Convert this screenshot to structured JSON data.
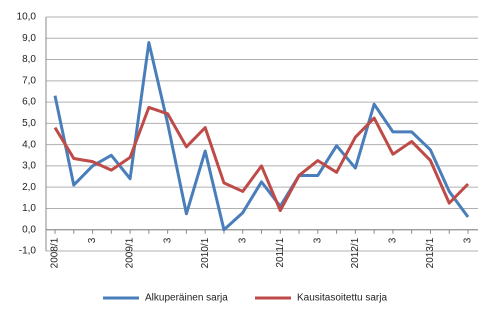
{
  "chart_data": {
    "type": "line",
    "categories": [
      "2008/1",
      null,
      "3",
      null,
      "2009/1",
      null,
      "3",
      null,
      "2010/1",
      null,
      "3",
      null,
      "2011/1",
      null,
      "3",
      null,
      "2012/1",
      null,
      "3",
      null,
      "2013/1",
      null,
      "3"
    ],
    "series": [
      {
        "name": "Alkuperäinen sarja",
        "color": "#4a7ebb",
        "values": [
          6.3,
          2.1,
          3.0,
          3.5,
          2.4,
          8.8,
          5.0,
          0.75,
          3.7,
          0.0,
          0.8,
          2.25,
          1.1,
          2.55,
          2.55,
          3.95,
          2.9,
          5.9,
          4.6,
          4.6,
          3.75,
          1.8,
          0.6
        ]
      },
      {
        "name": "Kausitasoitettu sarja",
        "color": "#be4b48",
        "values": [
          4.8,
          3.35,
          3.2,
          2.8,
          3.4,
          5.75,
          5.45,
          3.9,
          4.8,
          2.2,
          1.8,
          3.0,
          0.9,
          2.55,
          3.25,
          2.7,
          4.35,
          5.25,
          3.55,
          4.15,
          3.25,
          1.25,
          2.15
        ]
      }
    ],
    "ylim": [
      -1,
      10
    ],
    "yticks": [
      {
        "value": -1,
        "label": "-1,0"
      },
      {
        "value": 0,
        "label": "0,0"
      },
      {
        "value": 1,
        "label": "1,0"
      },
      {
        "value": 2,
        "label": "2,0"
      },
      {
        "value": 3,
        "label": "3,0"
      },
      {
        "value": 4,
        "label": "4,0"
      },
      {
        "value": 5,
        "label": "5,0"
      },
      {
        "value": 6,
        "label": "6,0"
      },
      {
        "value": 7,
        "label": "7,0"
      },
      {
        "value": 8,
        "label": "8,0"
      },
      {
        "value": 9,
        "label": "9,0"
      },
      {
        "value": 10,
        "label": "10,0"
      }
    ],
    "grid": true,
    "legend": "bottom"
  }
}
